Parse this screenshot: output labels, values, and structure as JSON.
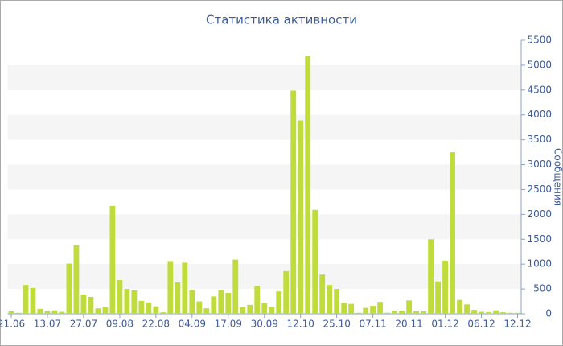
{
  "chart_data": {
    "type": "bar",
    "title": "Статистика активности",
    "y_label": "Сообщения",
    "categories": [
      "21.06",
      null,
      null,
      null,
      null,
      "13.07",
      null,
      null,
      null,
      null,
      "27.07",
      null,
      null,
      null,
      null,
      "09.08",
      null,
      null,
      null,
      null,
      "22.08",
      null,
      null,
      null,
      null,
      "04.09",
      null,
      null,
      null,
      null,
      "17.09",
      null,
      null,
      null,
      null,
      "30.09",
      null,
      null,
      null,
      null,
      "12.10",
      null,
      null,
      null,
      null,
      "25.10",
      null,
      null,
      null,
      null,
      "07.11",
      null,
      null,
      null,
      null,
      "20.11",
      null,
      null,
      null,
      null,
      "01.12",
      null,
      null,
      null,
      null,
      "06.12",
      null,
      null,
      null,
      null,
      "12.12"
    ],
    "values": [
      50,
      20,
      580,
      520,
      100,
      50,
      70,
      40,
      1010,
      1380,
      390,
      340,
      110,
      140,
      2170,
      680,
      500,
      470,
      260,
      230,
      150,
      30,
      1060,
      630,
      1030,
      480,
      250,
      110,
      350,
      480,
      420,
      1090,
      130,
      180,
      560,
      220,
      130,
      450,
      860,
      4490,
      3890,
      5190,
      2090,
      790,
      580,
      500,
      220,
      200,
      20,
      120,
      160,
      240,
      20,
      60,
      60,
      270,
      50,
      50,
      1500,
      650,
      1070,
      3250,
      280,
      190,
      80,
      40,
      30,
      70,
      30,
      20,
      20
    ],
    "color": "#bfdc3c",
    "ylim": [
      0,
      5500
    ],
    "yticks": [
      0,
      500,
      1000,
      1500,
      2000,
      2500,
      3000,
      3500,
      4000,
      4500,
      5000,
      5500
    ],
    "grid": "bands",
    "y_axis_side": "right"
  }
}
